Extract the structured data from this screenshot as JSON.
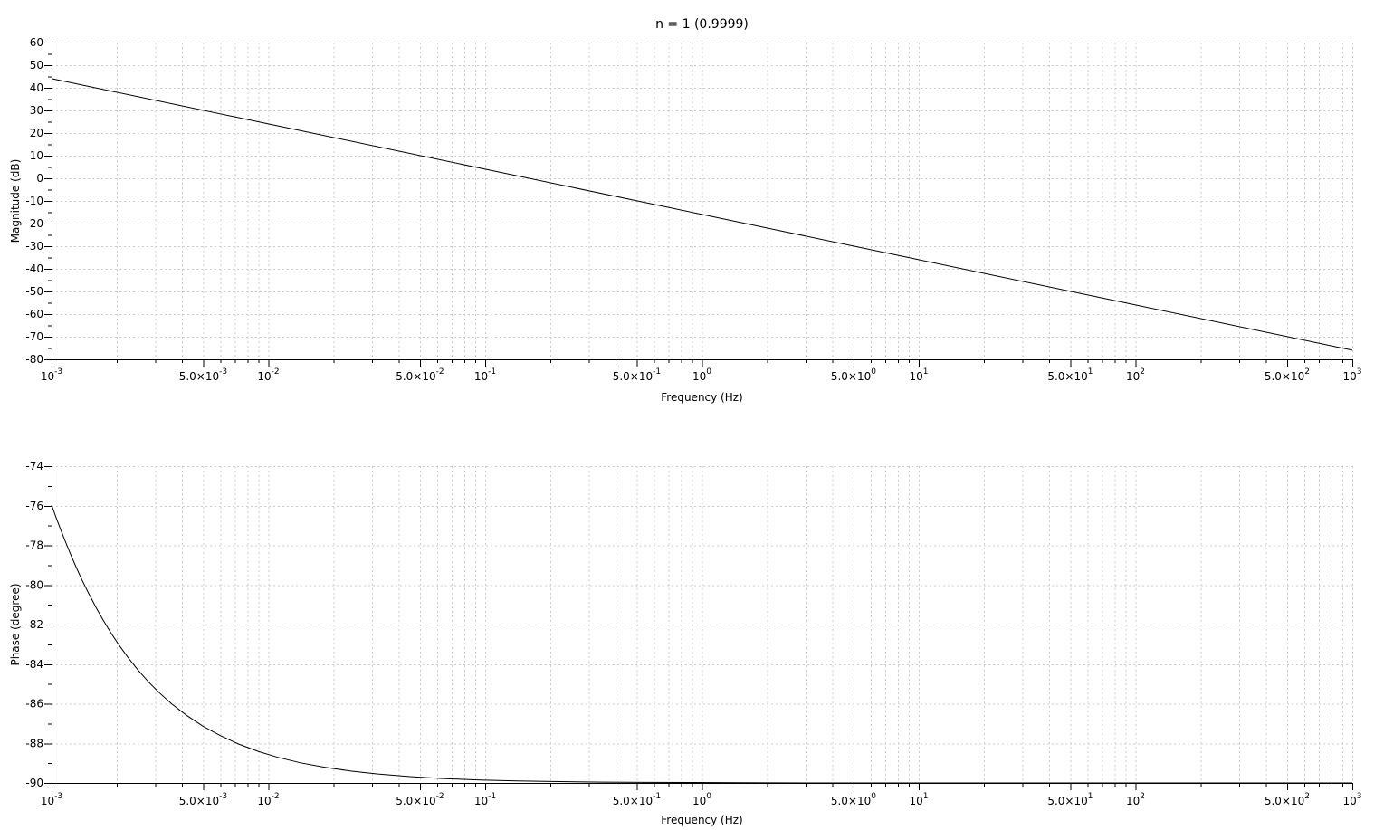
{
  "style": {
    "background": "#ffffff",
    "grid_color": "#cccccc",
    "axis_color": "#000000",
    "text_color": "#000000",
    "curve_color": "#000000"
  },
  "x_ticks": {
    "major": [
      {
        "value": 0.001,
        "base": "10",
        "exp": "-3"
      },
      {
        "value": 0.005,
        "base": "5.0×10",
        "exp": "-3"
      },
      {
        "value": 0.01,
        "base": "10",
        "exp": "-2"
      },
      {
        "value": 0.05,
        "base": "5.0×10",
        "exp": "-2"
      },
      {
        "value": 0.1,
        "base": "10",
        "exp": "-1"
      },
      {
        "value": 0.5,
        "base": "5.0×10",
        "exp": "-1"
      },
      {
        "value": 1,
        "base": "10",
        "exp": "0"
      },
      {
        "value": 5,
        "base": "5.0×10",
        "exp": "0"
      },
      {
        "value": 10,
        "base": "10",
        "exp": "1"
      },
      {
        "value": 50,
        "base": "5.0×10",
        "exp": "1"
      },
      {
        "value": 100,
        "base": "10",
        "exp": "2"
      },
      {
        "value": 500,
        "base": "5.0×10",
        "exp": "2"
      },
      {
        "value": 1000,
        "base": "10",
        "exp": "3"
      }
    ],
    "minor_multipliers": [
      2,
      3,
      4,
      6,
      7,
      8,
      9
    ]
  },
  "chart_data": [
    {
      "type": "line",
      "name": "magnitude-bode",
      "title": "n = 1 (0.9999)",
      "xlabel": "Frequency (Hz)",
      "ylabel": "Magnitude (dB)",
      "x_scale": "log",
      "xlim": [
        0.001,
        1000
      ],
      "ylim": [
        -80,
        60
      ],
      "y_major_step": 10,
      "y_minor_step": 5,
      "y_tick_labels": [
        60,
        50,
        40,
        30,
        20,
        10,
        0,
        -10,
        -20,
        -30,
        -40,
        -50,
        -60,
        -70,
        -80
      ],
      "grid": "dashed major horizontal; dashed log major+minor vertical",
      "legend": "none",
      "series": [
        {
          "name": "magnitude_dB",
          "color": "#000000",
          "points": [
            [
              0.001,
              44.04
            ],
            [
              0.01,
              24.04
            ],
            [
              0.1,
              4.04
            ],
            [
              1,
              -15.96
            ],
            [
              10,
              -35.96
            ],
            [
              100,
              -55.96
            ],
            [
              1000,
              -75.96
            ]
          ]
        }
      ]
    },
    {
      "type": "line",
      "name": "phase-bode",
      "title": "",
      "xlabel": "Frequency (Hz)",
      "ylabel": "Phase (degree)",
      "x_scale": "log",
      "xlim": [
        0.001,
        1000
      ],
      "ylim": [
        -90,
        -74
      ],
      "y_major_step": 2,
      "y_minor_step": 1,
      "y_tick_labels": [
        -74,
        -76,
        -78,
        -80,
        -82,
        -84,
        -86,
        -88,
        -90
      ],
      "grid": "dashed major horizontal; dashed log major+minor vertical",
      "legend": "none",
      "series": [
        {
          "name": "phase_degree",
          "color": "#000000",
          "points": [
            [
              0.001,
              -75.96
            ],
            [
              0.00105,
              -76.61
            ],
            [
              0.0011,
              -77.19
            ],
            [
              0.00115,
              -77.73
            ],
            [
              0.00122,
              -78.42
            ],
            [
              0.0013,
              -79.12
            ],
            [
              0.00138,
              -79.74
            ],
            [
              0.00148,
              -80.41
            ],
            [
              0.0016,
              -81.12
            ],
            [
              0.00172,
              -81.73
            ],
            [
              0.00188,
              -82.43
            ],
            [
              0.00205,
              -83.05
            ],
            [
              0.00225,
              -83.66
            ],
            [
              0.0025,
              -84.29
            ],
            [
              0.0028,
              -84.9
            ],
            [
              0.00315,
              -85.46
            ],
            [
              0.0036,
              -86.03
            ],
            [
              0.0042,
              -86.59
            ],
            [
              0.005,
              -87.14
            ],
            [
              0.006,
              -87.61
            ],
            [
              0.0073,
              -88.04
            ],
            [
              0.009,
              -88.41
            ],
            [
              0.011,
              -88.7
            ],
            [
              0.014,
              -88.98
            ],
            [
              0.018,
              -89.2
            ],
            [
              0.024,
              -89.4
            ],
            [
              0.032,
              -89.55
            ],
            [
              0.045,
              -89.68
            ],
            [
              0.065,
              -89.78
            ],
            [
              0.095,
              -89.85
            ],
            [
              0.14,
              -89.9
            ],
            [
              0.22,
              -89.93
            ],
            [
              0.35,
              -89.96
            ],
            [
              0.55,
              -89.97
            ],
            [
              0.9,
              -89.98
            ],
            [
              1.5,
              -89.99
            ],
            [
              3,
              -90
            ],
            [
              8,
              -90
            ],
            [
              30,
              -90
            ],
            [
              150,
              -90
            ],
            [
              1000,
              -90
            ]
          ]
        }
      ]
    }
  ]
}
